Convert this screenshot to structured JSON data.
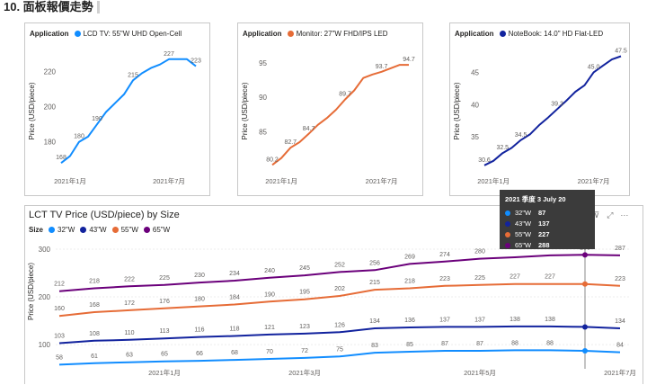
{
  "page": {
    "title": "10. 面板報價走勢"
  },
  "colors": {
    "lcd": "#118dff",
    "monitor": "#e66c37",
    "notebook": "#12239e",
    "s32": "#118dff",
    "s43": "#12239e",
    "s55": "#e66c37",
    "s65": "#6b007b",
    "text": "#605e5c",
    "grid": "#e6e6e6"
  },
  "chart_data": [
    {
      "id": "lcd",
      "type": "line",
      "legend_label": "Application",
      "series": [
        {
          "name": "LCD TV: 55\"W UHD Open-Cell",
          "values": [
            168,
            172,
            180,
            183,
            190,
            197,
            202,
            207,
            215,
            219,
            222,
            224,
            227,
            227,
            227,
            223
          ],
          "labels": {
            "0": "168",
            "2": "180",
            "4": "190",
            "8": "215",
            "12": "227",
            "15": "223"
          }
        }
      ],
      "ylabel": "Price (USD/piece)",
      "yticks": [
        180,
        200,
        220
      ],
      "ylim": [
        163,
        232
      ],
      "xticks": [
        {
          "i": 1,
          "label": "2021年1月"
        },
        {
          "i": 12,
          "label": "2021年7月"
        }
      ]
    },
    {
      "id": "monitor",
      "type": "line",
      "legend_label": "Application",
      "series": [
        {
          "name": "Monitor: 27\"W FHD/IPS LED",
          "values": [
            80.2,
            81.2,
            82.7,
            83.5,
            84.7,
            86,
            87,
            88.2,
            89.7,
            91,
            92.8,
            93.3,
            93.7,
            94.2,
            94.7,
            94.7
          ],
          "labels": {
            "0": "80.2",
            "2": "82.7",
            "4": "84.7",
            "8": "89.7",
            "12": "93.7",
            "15": "94.7"
          }
        }
      ],
      "ylabel": "Price (USD/piece)",
      "yticks": [
        85,
        90,
        95
      ],
      "ylim": [
        79.2,
        96.8
      ],
      "xticks": [
        {
          "i": 1,
          "label": "2021年1月"
        },
        {
          "i": 12,
          "label": "2021年7月"
        }
      ]
    },
    {
      "id": "notebook",
      "type": "line",
      "legend_label": "Application",
      "series": [
        {
          "name": "NoteBook: 14.0\" HD Flat-LED",
          "values": [
            30.6,
            31.3,
            32.5,
            33.3,
            34.5,
            35.4,
            36.8,
            38,
            39.3,
            40.6,
            42,
            43,
            45,
            46,
            47,
            47.5
          ],
          "labels": {
            "0": "30.6",
            "2": "32.5",
            "4": "34.5",
            "8": "39.3",
            "12": "45.0",
            "15": "47.5"
          }
        }
      ],
      "ylabel": "Price (USD/piece)",
      "yticks": [
        35,
        40,
        45
      ],
      "ylim": [
        29.6,
        48.4
      ],
      "xticks": [
        {
          "i": 1,
          "label": "2021年1月"
        },
        {
          "i": 12,
          "label": "2021年7月"
        }
      ]
    },
    {
      "id": "size",
      "type": "line",
      "title": "LCT TV Price (USD/piece) by Size",
      "legend_label": "Size",
      "ylabel": "Price (USD/piece)",
      "yticks": [
        100,
        200,
        300
      ],
      "ylim": [
        70,
        315
      ],
      "xticks": [
        {
          "i": 3,
          "label": "2021年1月"
        },
        {
          "i": 7,
          "label": "2021年3月"
        },
        {
          "i": 12,
          "label": "2021年5月"
        },
        {
          "i": 16,
          "label": "2021年7月"
        }
      ],
      "series": [
        {
          "name": "65\"W",
          "key": "s65",
          "values": [
            212,
            218,
            222,
            225,
            230,
            234,
            240,
            245,
            252,
            256,
            269,
            274,
            280,
            283,
            287,
            288,
            287
          ],
          "labels": [
            "212",
            "218",
            "222",
            "225",
            "230",
            "234",
            "240",
            "245",
            "252",
            "256",
            "269",
            "274",
            "280",
            "",
            "",
            "288",
            "287"
          ]
        },
        {
          "name": "55\"W",
          "key": "s55",
          "values": [
            160,
            168,
            172,
            176,
            180,
            184,
            190,
            195,
            202,
            215,
            218,
            223,
            225,
            227,
            227,
            227,
            223
          ],
          "labels": [
            "160",
            "168",
            "172",
            "176",
            "180",
            "184",
            "190",
            "195",
            "202",
            "215",
            "218",
            "223",
            "225",
            "227",
            "227",
            "",
            "223"
          ]
        },
        {
          "name": "43\"W",
          "key": "s43",
          "values": [
            103,
            108,
            110,
            113,
            116,
            118,
            121,
            123,
            126,
            134,
            136,
            137,
            137,
            138,
            138,
            137,
            134
          ],
          "labels": [
            "103",
            "108",
            "110",
            "113",
            "116",
            "118",
            "121",
            "123",
            "126",
            "134",
            "136",
            "137",
            "137",
            "138",
            "138",
            "",
            "134"
          ]
        },
        {
          "name": "32\"W",
          "key": "s32",
          "values": [
            58,
            61,
            63,
            65,
            66,
            68,
            70,
            72,
            75,
            83,
            85,
            87,
            87,
            88,
            88,
            87,
            84
          ],
          "labels": [
            "58",
            "61",
            "63",
            "65",
            "66",
            "68",
            "70",
            "72",
            "75",
            "83",
            "85",
            "87",
            "87",
            "88",
            "88",
            "",
            "84"
          ]
        }
      ],
      "tooltip": {
        "title": "2021 季度 3 July 20",
        "rows": [
          {
            "name": "32\"W",
            "value": "87",
            "key": "s32"
          },
          {
            "name": "43\"W",
            "value": "137",
            "key": "s43"
          },
          {
            "name": "55\"W",
            "value": "227",
            "key": "s55"
          },
          {
            "name": "65\"W",
            "value": "288",
            "key": "s65"
          }
        ]
      }
    }
  ],
  "toolbar": {
    "pin_icon": "⚲",
    "filter_icon": "⊽",
    "focus_icon": "⤢",
    "more_icon": "⋯"
  }
}
